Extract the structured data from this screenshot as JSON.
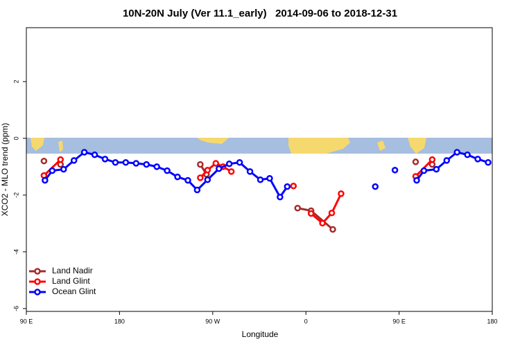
{
  "chart_data": {
    "type": "line",
    "title": "10N-20N July (Ver 11.1_early)   2014-09-06 to 2018-12-31",
    "x_label": "Longitude",
    "y_label": "XCO2 - MLO trend (ppm)",
    "xlim": [
      90,
      540
    ],
    "ylim": [
      -6.1,
      3.9
    ],
    "xticks": [
      {
        "value": 90,
        "label": "90 E"
      },
      180,
      {
        "value": 270,
        "label": "90 W"
      },
      {
        "value": 360,
        "label": "0"
      },
      {
        "value": 450,
        "label": "90 E"
      },
      {
        "value": 540,
        "label": "180"
      }
    ],
    "yticks": [
      -6,
      -4,
      -2,
      0,
      2
    ],
    "grid": false,
    "legend": "bottom-left",
    "series": [
      {
        "name": "Land Nadir",
        "color": "#a52a2a",
        "x": [
          107,
          null,
          123,
          null,
          258,
          264,
          null,
          352,
          365,
          386,
          null,
          466,
          null,
          482
        ],
        "values": [
          -0.8,
          null,
          -0.92,
          null,
          -0.92,
          -1.27,
          null,
          -2.46,
          -2.55,
          -3.21,
          null,
          -0.83,
          null,
          -0.92
        ]
      },
      {
        "name": "Land Glint",
        "color": "#ff0000",
        "x": [
          107,
          123,
          null,
          258,
          265,
          273,
          280,
          288,
          null,
          348,
          null,
          365,
          376,
          385,
          394,
          null,
          466,
          482
        ],
        "values": [
          -1.31,
          -0.75,
          null,
          -1.39,
          -1.12,
          -0.88,
          -1.0,
          -1.17,
          null,
          -1.68,
          null,
          -2.65,
          -2.99,
          -2.63,
          -1.95,
          null,
          -1.34,
          -0.75
        ]
      },
      {
        "name": "Ocean Glint",
        "color": "#0000ff",
        "x": [
          108,
          115,
          126,
          136,
          146,
          156,
          166,
          176,
          186,
          196,
          206,
          216,
          226,
          236,
          246,
          255,
          265,
          276,
          286,
          296,
          306,
          316,
          325,
          335,
          342,
          null,
          427,
          null,
          446,
          null,
          467,
          474,
          486,
          496,
          506,
          516,
          526,
          536
        ],
        "values": [
          -1.48,
          -1.14,
          -1.09,
          -0.78,
          -0.49,
          -0.58,
          -0.73,
          -0.85,
          -0.85,
          -0.88,
          -0.92,
          -1.0,
          -1.14,
          -1.36,
          -1.48,
          -1.82,
          -1.46,
          -1.07,
          -0.9,
          -0.85,
          -1.17,
          -1.46,
          -1.41,
          -2.07,
          -1.7,
          null,
          -1.7,
          null,
          -1.12,
          null,
          -1.48,
          -1.14,
          -1.09,
          -0.78,
          -0.49,
          -0.58,
          -0.73,
          -0.85
        ]
      }
    ]
  }
}
